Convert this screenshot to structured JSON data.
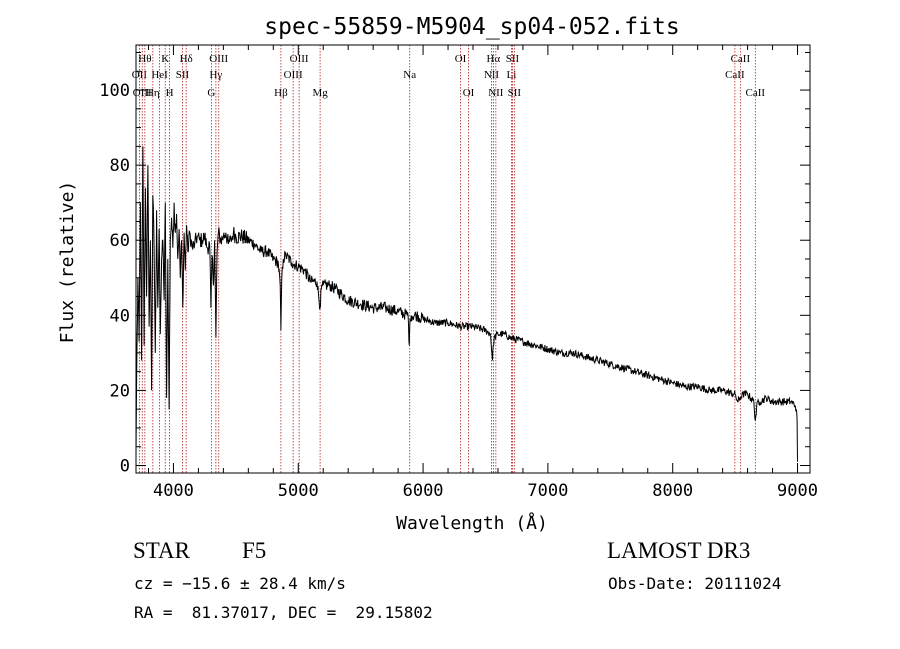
{
  "chart_data": {
    "type": "line",
    "title": "spec-55859-M5904_sp04-052.fits",
    "xlabel": "Wavelength (Å)",
    "ylabel": "Flux (relative)",
    "xlim": [
      3700,
      9100
    ],
    "ylim": [
      -2,
      112
    ],
    "x_ticks": [
      4000,
      5000,
      6000,
      7000,
      8000,
      9000
    ],
    "x_tick_labels": [
      "4000",
      "5000",
      "6000",
      "7000",
      "8000",
      "9000"
    ],
    "y_ticks": [
      0,
      20,
      40,
      60,
      80,
      100
    ],
    "y_tick_labels": [
      "0",
      "20",
      "40",
      "60",
      "80",
      "100"
    ],
    "series": [
      {
        "name": "flux",
        "color": "#000000",
        "x": [
          3700,
          3705,
          3715,
          3725,
          3735,
          3745,
          3755,
          3765,
          3775,
          3785,
          3795,
          3805,
          3815,
          3825,
          3835,
          3845,
          3855,
          3865,
          3875,
          3885,
          3895,
          3905,
          3915,
          3925,
          3935,
          3945,
          3955,
          3965,
          3975,
          3985,
          3995,
          4005,
          4015,
          4025,
          4035,
          4045,
          4055,
          4065,
          4075,
          4085,
          4095,
          4105,
          4115,
          4130,
          4150,
          4170,
          4190,
          4210,
          4230,
          4250,
          4270,
          4290,
          4300,
          4310,
          4320,
          4330,
          4340,
          4350,
          4360,
          4380,
          4400,
          4420,
          4440,
          4460,
          4480,
          4500,
          4550,
          4600,
          4650,
          4700,
          4750,
          4800,
          4840,
          4855,
          4861,
          4868,
          4880,
          4900,
          4950,
          5000,
          5050,
          5100,
          5150,
          5175,
          5185,
          5200,
          5250,
          5300,
          5400,
          5500,
          5600,
          5700,
          5800,
          5880,
          5890,
          5896,
          5905,
          5950,
          6000,
          6100,
          6200,
          6300,
          6400,
          6500,
          6540,
          6556,
          6563,
          6570,
          6600,
          6650,
          6700,
          6800,
          6900,
          7000,
          7100,
          7200,
          7300,
          7400,
          7500,
          7600,
          7700,
          7800,
          7900,
          8000,
          8100,
          8200,
          8300,
          8400,
          8490,
          8500,
          8520,
          8542,
          8560,
          8600,
          8650,
          8662,
          8680,
          8700,
          8750,
          8800,
          8850,
          8900,
          8950,
          8980,
          8990,
          8997,
          9000
        ],
        "y": [
          3,
          22,
          50,
          33,
          70,
          28,
          85,
          32,
          74,
          45,
          80,
          37,
          60,
          20,
          72,
          58,
          30,
          68,
          42,
          63,
          35,
          55,
          60,
          44,
          70,
          18,
          55,
          15,
          60,
          66,
          58,
          70,
          62,
          67,
          55,
          63,
          50,
          60,
          42,
          62,
          52,
          64,
          57,
          62,
          58,
          59,
          61,
          60,
          60,
          61,
          58,
          59,
          42,
          56,
          48,
          60,
          34,
          57,
          62,
          60,
          61,
          62,
          59,
          60,
          62,
          61,
          61,
          60,
          59,
          57,
          57,
          55,
          54,
          48,
          36,
          50,
          55,
          56,
          54,
          53,
          52,
          49,
          49,
          42,
          47,
          48,
          48,
          47,
          44,
          43,
          42,
          42,
          41,
          40,
          32,
          39,
          40,
          40,
          39,
          38,
          38,
          37,
          37,
          36,
          35,
          28,
          32,
          34,
          35,
          35,
          34,
          33,
          32,
          31,
          30,
          30,
          29,
          28,
          27,
          26,
          25,
          24,
          23,
          22,
          21,
          21,
          20,
          20,
          19,
          19,
          17,
          18,
          19,
          19,
          17,
          12,
          17,
          17,
          18,
          17,
          17,
          17,
          17,
          16,
          15,
          12,
          1
        ]
      }
    ],
    "line_markers": [
      {
        "wavelength": 3727,
        "label": "OII",
        "row": 2
      },
      {
        "wavelength": 3750,
        "label": "OIII",
        "row": 3
      },
      {
        "wavelength": 3771,
        "label": "Hθ",
        "row": 1
      },
      {
        "wavelength": 3835,
        "label": "Hη",
        "row": 3
      },
      {
        "wavelength": 3889,
        "label": "HeI",
        "row": 2
      },
      {
        "wavelength": 3934,
        "label": "K",
        "row": 1
      },
      {
        "wavelength": 3969,
        "label": "H",
        "row": 3
      },
      {
        "wavelength": 4072,
        "label": "SII",
        "row": 2
      },
      {
        "wavelength": 4102,
        "label": "Hδ",
        "row": 1
      },
      {
        "wavelength": 4304,
        "label": "G",
        "row": 3
      },
      {
        "wavelength": 4340,
        "label": "Hγ",
        "row": 2
      },
      {
        "wavelength": 4363,
        "label": "OIII",
        "row": 1
      },
      {
        "wavelength": 4861,
        "label": "Hβ",
        "row": 3
      },
      {
        "wavelength": 4959,
        "label": "OIII",
        "row": 2
      },
      {
        "wavelength": 5007,
        "label": "OIII",
        "row": 1
      },
      {
        "wavelength": 5175,
        "label": "Mg",
        "row": 3
      },
      {
        "wavelength": 5893,
        "label": "Na",
        "row": 2
      },
      {
        "wavelength": 6300,
        "label": "OI",
        "row": 1
      },
      {
        "wavelength": 6364,
        "label": "OI",
        "row": 3
      },
      {
        "wavelength": 6548,
        "label": "NII",
        "row": 2
      },
      {
        "wavelength": 6563,
        "label": "Hα",
        "row": 1
      },
      {
        "wavelength": 6583,
        "label": "NII",
        "row": 3
      },
      {
        "wavelength": 6708,
        "label": "Li",
        "row": 2
      },
      {
        "wavelength": 6716,
        "label": "SII",
        "row": 1
      },
      {
        "wavelength": 6731,
        "label": "SII",
        "row": 3
      },
      {
        "wavelength": 8498,
        "label": "CaII",
        "row": 2
      },
      {
        "wavelength": 8542,
        "label": "CaII",
        "row": 1
      },
      {
        "wavelength": 8662,
        "label": "CaII",
        "row": 3
      }
    ],
    "colors": {
      "spectrum": "#000000",
      "marker": "#b22222",
      "axes": "#000000"
    }
  },
  "info": {
    "class": "STAR",
    "subclass": "F5",
    "survey": "LAMOST DR3",
    "redshift": "cz = −15.6 ± 28.4 km/s",
    "obs_date": "Obs-Date: 20111024",
    "coords": "RA =  81.37017, DEC =  29.15802"
  }
}
